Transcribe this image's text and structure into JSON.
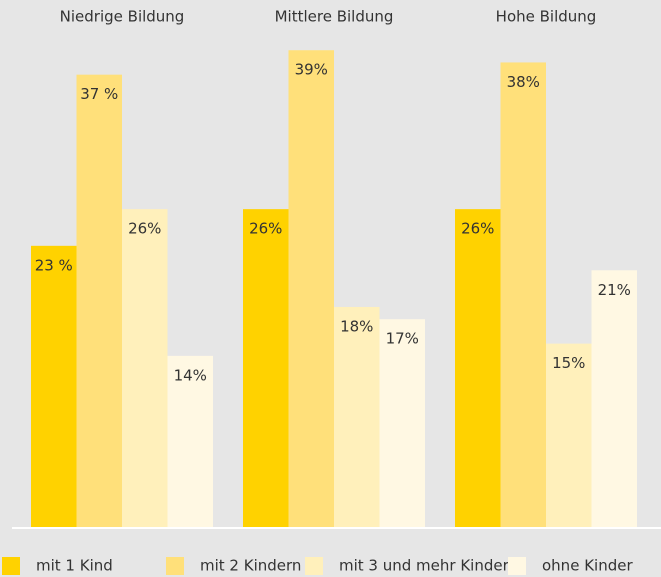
{
  "chart_data": {
    "type": "bar",
    "categories": [
      "Niedrige Bildung",
      "Mittlere Bildung",
      "Hohe Bildung"
    ],
    "series": [
      {
        "name": "mit 1 Kind",
        "color": "#ffd200",
        "values": [
          23,
          26,
          26
        ],
        "value_labels": [
          "23 %",
          "26%",
          "26%"
        ]
      },
      {
        "name": "mit 2 Kindern",
        "color": "#ffe07a",
        "values": [
          37,
          39,
          38
        ],
        "value_labels": [
          "37 %",
          "39%",
          "38%"
        ]
      },
      {
        "name": "mit 3 und mehr Kindern",
        "color": "#fff0bb",
        "values": [
          26,
          18,
          15
        ],
        "value_labels": [
          "26%",
          "18%",
          "15%"
        ]
      },
      {
        "name": "ohne Kinder",
        "color": "#fff8e3",
        "values": [
          14,
          17,
          21
        ],
        "value_labels": [
          "14%",
          "17%",
          "21%"
        ]
      }
    ],
    "ylim": [
      0,
      40
    ]
  }
}
